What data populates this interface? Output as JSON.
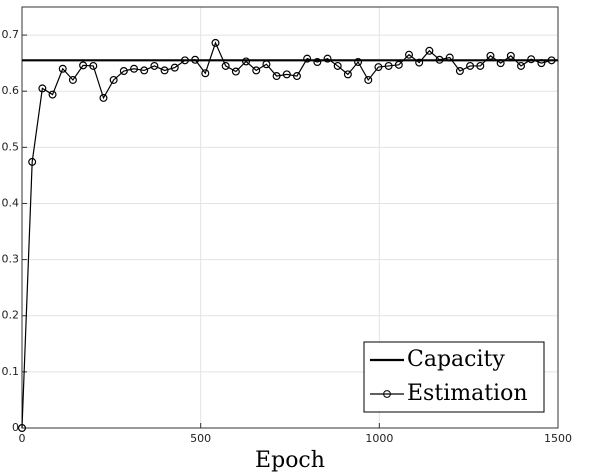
{
  "chart_data": {
    "type": "line",
    "xlabel": "Epoch",
    "xlim": [
      0,
      1500
    ],
    "xticks": [
      0,
      500,
      1000,
      1500
    ],
    "ylim": [
      0,
      0.75
    ],
    "yticks": [
      0,
      0.1,
      0.2,
      0.3,
      0.4,
      0.5,
      0.6,
      0.7
    ],
    "grid": true,
    "legend": "lower right",
    "series": [
      {
        "name": "Capacity",
        "color": "#000000",
        "marker": "none",
        "x": [
          0,
          1500
        ],
        "values": [
          0.655,
          0.655
        ]
      },
      {
        "name": "Estimation",
        "color": "#000000",
        "marker": "circle",
        "x": [
          0,
          28.5,
          57,
          85.5,
          114,
          142.5,
          171,
          199.5,
          228,
          256.5,
          285,
          313.5,
          342,
          370.5,
          399,
          427.5,
          456,
          484.5,
          513,
          541.5,
          570,
          598.5,
          627,
          655.5,
          684,
          712.5,
          741,
          769.5,
          798,
          826.5,
          855,
          883.5,
          912,
          940.5,
          969,
          997.5,
          1026,
          1054.5,
          1083,
          1111.5,
          1140,
          1168.5,
          1197,
          1225.5,
          1254,
          1282.5,
          1311,
          1339.5,
          1368,
          1396.5,
          1425,
          1453.5,
          1482
        ],
        "values": [
          0,
          0.474,
          0.605,
          0.594,
          0.64,
          0.62,
          0.646,
          0.645,
          0.588,
          0.62,
          0.636,
          0.64,
          0.637,
          0.645,
          0.637,
          0.642,
          0.655,
          0.656,
          0.632,
          0.686,
          0.645,
          0.635,
          0.653,
          0.637,
          0.648,
          0.627,
          0.63,
          0.627,
          0.658,
          0.652,
          0.658,
          0.645,
          0.63,
          0.652,
          0.62,
          0.643,
          0.645,
          0.647,
          0.665,
          0.651,
          0.672,
          0.656,
          0.66,
          0.636,
          0.645,
          0.645,
          0.663,
          0.65,
          0.663,
          0.645,
          0.657,
          0.65,
          0.655
        ]
      }
    ]
  }
}
